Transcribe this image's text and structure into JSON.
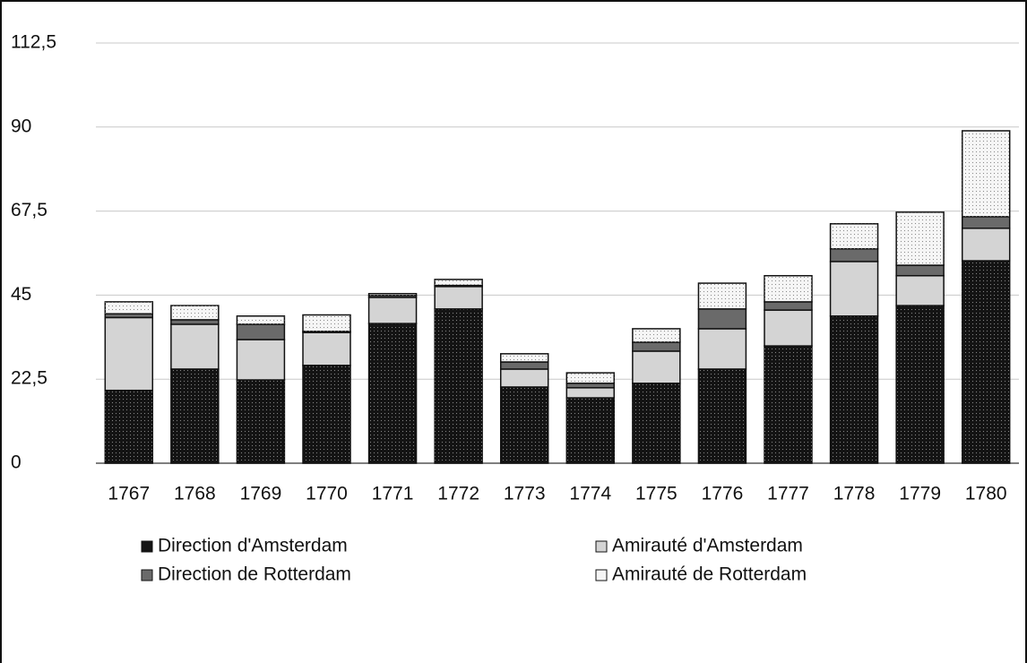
{
  "chart_data": {
    "type": "stacked_bar",
    "categories": [
      "1767",
      "1768",
      "1769",
      "1770",
      "1771",
      "1772",
      "1773",
      "1774",
      "1775",
      "1776",
      "1777",
      "1778",
      "1779",
      "1780"
    ],
    "series": [
      {
        "name": "Direction d'Amsterdam",
        "color": "#141414",
        "values": [
          19.5,
          25.2,
          22.3,
          26.2,
          37.4,
          41.3,
          20.4,
          17.5,
          21.4,
          25.2,
          31.4,
          39.4,
          42.2,
          54.2
        ]
      },
      {
        "name": "Amirauté d'Amsterdam",
        "color": "#d4d4d4",
        "values": [
          19.5,
          12,
          10.8,
          8.8,
          7,
          6,
          4.8,
          2.7,
          8.6,
          10.8,
          9.6,
          14.6,
          8,
          8.7
        ]
      },
      {
        "name": "Direction de Rotterdam",
        "color": "#6a6a6a",
        "values": [
          1,
          1.2,
          4.1,
          0.3,
          0.5,
          0.3,
          1.9,
          1.2,
          2.4,
          5.3,
          2.2,
          3.4,
          2.8,
          3.1
        ]
      },
      {
        "name": "Amirauté de Rotterdam",
        "color": "#f5f5f5",
        "values": [
          3.2,
          3.8,
          2.2,
          4.4,
          0.5,
          1.6,
          2.2,
          2.8,
          3.6,
          6.9,
          7,
          6.7,
          14.2,
          23
        ]
      }
    ],
    "ylim": [
      0,
      112.5
    ],
    "yticks": [
      0,
      {
        "value": 22.5,
        "label": "22,5"
      },
      45,
      {
        "value": 67.5,
        "label": "67,5"
      },
      90,
      {
        "value": 112.5,
        "label": "112,5"
      }
    ],
    "grid": true
  }
}
